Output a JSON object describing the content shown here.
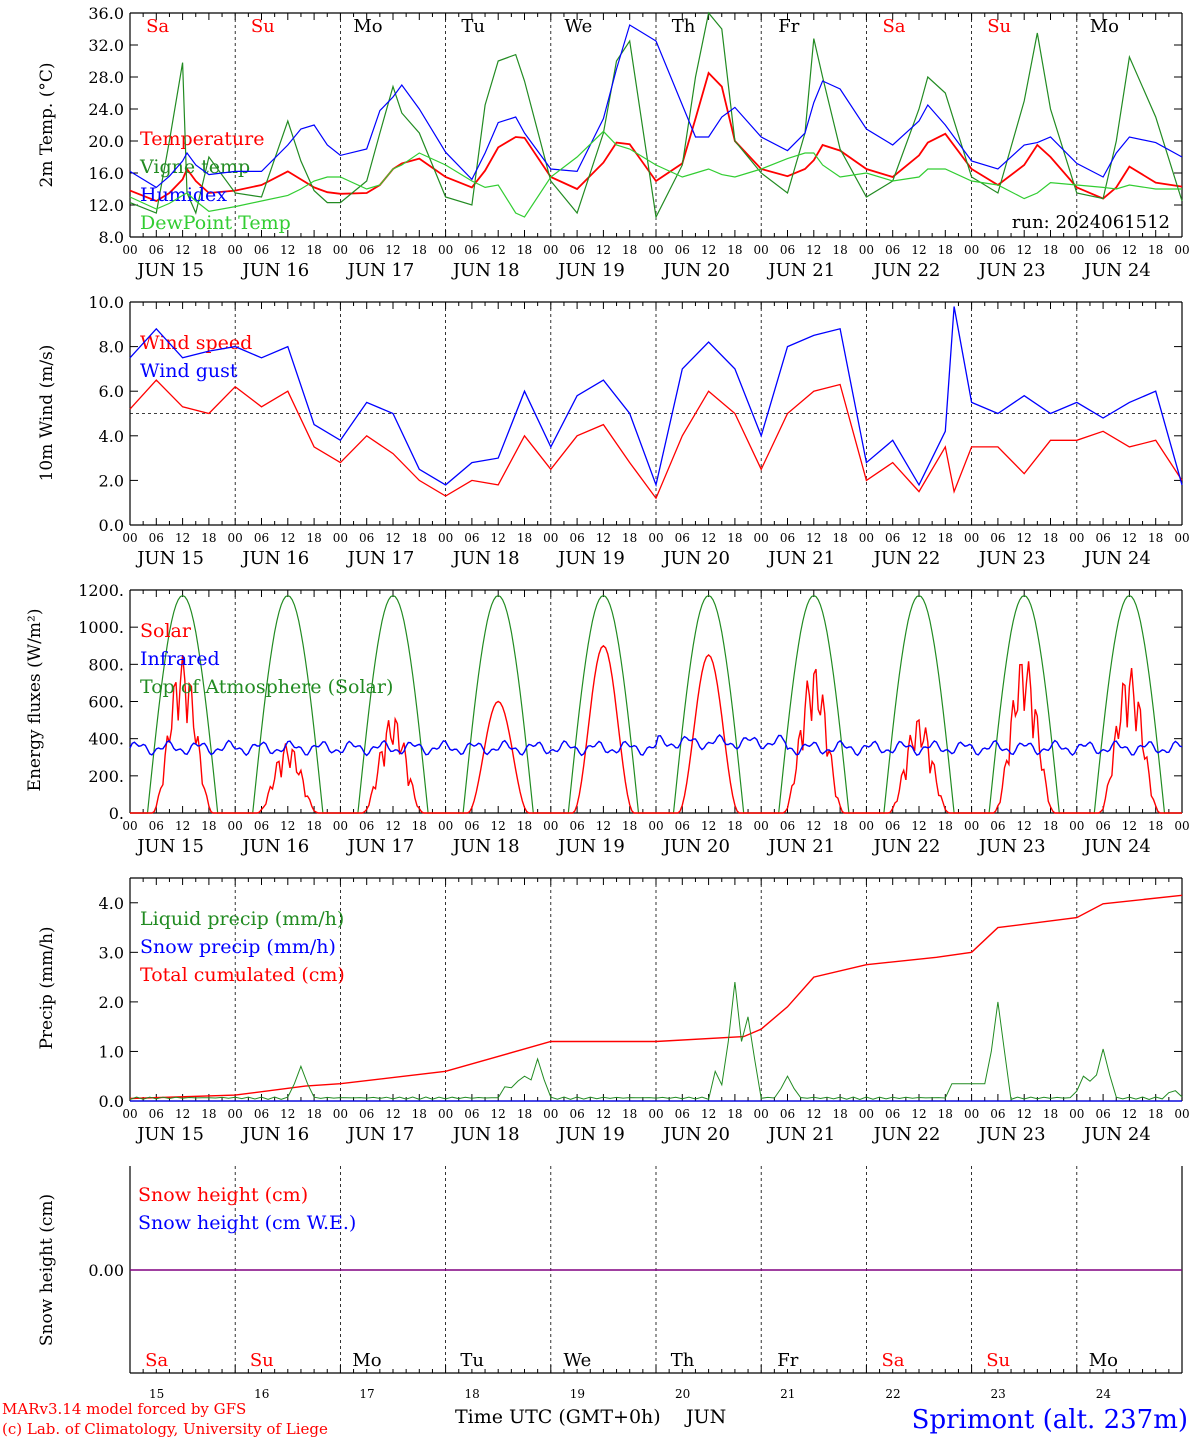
{
  "footer": {
    "model": "MARv3.14 model forced by GFS",
    "lab": "(c) Lab. of Climatology, University of Liege",
    "xlabel": "Time UTC (GMT+0h)",
    "month": "JUN",
    "location": "Sprimont (alt. 237m)"
  },
  "run_label": "run: 2024061512",
  "days": {
    "weekday_names": [
      "Sa",
      "Su",
      "Mo",
      "Tu",
      "We",
      "Th",
      "Fr",
      "Sa",
      "Su",
      "Mo"
    ],
    "weekend": [
      true,
      true,
      false,
      false,
      false,
      false,
      false,
      true,
      true,
      false
    ],
    "date_labels": [
      "JUN 15",
      "JUN 16",
      "JUN 17",
      "JUN 18",
      "JUN 19",
      "JUN 20",
      "JUN 21",
      "JUN 22",
      "JUN 23",
      "JUN 24"
    ],
    "day_numbers": [
      "15",
      "16",
      "17",
      "18",
      "19",
      "20",
      "21",
      "22",
      "23",
      "24"
    ],
    "hour_ticks": [
      "00",
      "06",
      "12",
      "18"
    ]
  },
  "colors": {
    "red": "#ff0000",
    "green": "#228b22",
    "blue": "#0000ff",
    "lightgreen": "#32cd32",
    "purple": "#800080"
  },
  "chart_data": [
    {
      "type": "line",
      "ylabel": "2m Temp. (°C)",
      "ylim": [
        8,
        36
      ],
      "yticks": [
        "8.0",
        "12.0",
        "16.0",
        "20.0",
        "24.0",
        "28.0",
        "32.0",
        "36.0"
      ],
      "x_hours": [
        0,
        6,
        9,
        12,
        13,
        15,
        18,
        24,
        30,
        36,
        39,
        42,
        45,
        48,
        54,
        57,
        60,
        62,
        66,
        72,
        78,
        81,
        84,
        88,
        90,
        96,
        102,
        108,
        111,
        114,
        120,
        126,
        129,
        132,
        135,
        138,
        144,
        150,
        154,
        156,
        158,
        162,
        168,
        174,
        180,
        182,
        186,
        192,
        198,
        204,
        207,
        210,
        216,
        222,
        225,
        228,
        234,
        240
      ],
      "series": [
        {
          "name": "Temperature",
          "color": "red",
          "values": [
            13.8,
            12.5,
            13.5,
            15.2,
            16.5,
            15.0,
            13.5,
            13.8,
            14.5,
            16.2,
            15.2,
            14.2,
            13.6,
            13.4,
            13.5,
            14.5,
            16.5,
            17.2,
            17.8,
            15.5,
            14.2,
            16.3,
            19.2,
            20.5,
            20.4,
            15.5,
            14.0,
            17.3,
            19.8,
            19.6,
            15.0,
            17.2,
            22.8,
            28.5,
            26.8,
            20.0,
            16.5,
            15.6,
            16.5,
            17.6,
            19.5,
            18.8,
            16.5,
            15.5,
            18.2,
            19.8,
            20.9,
            16.5,
            14.5,
            17.0,
            19.5,
            18.0,
            14.2,
            12.8,
            14.2,
            16.8,
            14.8,
            14.3
          ]
        },
        {
          "name": "Vigne temp",
          "color": "green",
          "values": [
            12.3,
            11.0,
            20.0,
            29.8,
            13.5,
            11.0,
            18.0,
            13.5,
            13.0,
            22.5,
            17.5,
            13.8,
            12.3,
            12.3,
            15.0,
            21.0,
            26.8,
            23.5,
            21.0,
            13.0,
            12.0,
            24.5,
            30.0,
            30.8,
            27.5,
            15.0,
            11.0,
            21.0,
            30.0,
            32.5,
            10.5,
            17.0,
            28.0,
            36.5,
            34.0,
            20.0,
            16.0,
            13.5,
            21.0,
            32.8,
            28.0,
            19.0,
            13.0,
            15.0,
            24.0,
            28.0,
            26.0,
            15.5,
            13.5,
            25.0,
            33.5,
            24.0,
            13.5,
            12.8,
            20.0,
            30.5,
            23.0,
            12.5
          ]
        },
        {
          "name": "Humidex",
          "color": "blue",
          "values": [
            16.2,
            14.2,
            15.6,
            17.5,
            18.5,
            17.0,
            15.8,
            16.2,
            16.2,
            19.5,
            21.5,
            22.0,
            19.5,
            18.2,
            19.0,
            23.8,
            25.5,
            27.0,
            24.0,
            18.6,
            15.2,
            18.5,
            22.3,
            23.0,
            21.0,
            16.5,
            16.2,
            22.8,
            29.0,
            34.5,
            32.5,
            24.5,
            20.5,
            20.5,
            23.0,
            24.2,
            20.5,
            18.8,
            21.0,
            24.8,
            27.5,
            26.5,
            21.5,
            19.5,
            22.5,
            24.5,
            22.0,
            17.5,
            16.5,
            19.5,
            19.8,
            20.5,
            17.2,
            15.5,
            18.5,
            20.5,
            19.8,
            18.0
          ]
        },
        {
          "name": "DewPoint Temp",
          "color": "lightgreen",
          "values": [
            13.0,
            11.5,
            12.2,
            13.2,
            13.5,
            12.5,
            11.2,
            11.8,
            12.5,
            13.2,
            14.0,
            15.0,
            15.5,
            15.5,
            14.0,
            14.5,
            16.5,
            17.0,
            18.5,
            17.0,
            15.0,
            14.2,
            14.5,
            11.0,
            10.5,
            15.5,
            18.0,
            21.2,
            19.5,
            19.0,
            17.0,
            15.5,
            16.0,
            16.5,
            15.8,
            15.5,
            16.5,
            17.8,
            18.5,
            18.5,
            17.0,
            15.5,
            16.0,
            15.0,
            15.5,
            16.5,
            16.5,
            15.0,
            14.5,
            12.8,
            13.5,
            14.8,
            14.5,
            14.2,
            14.0,
            14.5,
            14.0,
            14.0
          ]
        }
      ]
    },
    {
      "type": "line",
      "ylabel": "10m Wind (m/s)",
      "ylim": [
        0,
        10
      ],
      "yticks": [
        "0.0",
        "2.0",
        "4.0",
        "6.0",
        "8.0",
        "10.0"
      ],
      "reference_line": 5,
      "x_hours": [
        0,
        6,
        12,
        18,
        24,
        30,
        36,
        42,
        48,
        54,
        60,
        66,
        72,
        78,
        84,
        90,
        96,
        102,
        108,
        114,
        120,
        126,
        132,
        138,
        144,
        150,
        156,
        162,
        168,
        174,
        180,
        186,
        188,
        192,
        198,
        204,
        210,
        216,
        222,
        228,
        234,
        240
      ],
      "series": [
        {
          "name": "Wind speed",
          "color": "red",
          "values": [
            5.2,
            6.5,
            5.3,
            5.0,
            6.2,
            5.3,
            6.0,
            3.5,
            2.8,
            4.0,
            3.2,
            2.0,
            1.3,
            2.0,
            1.8,
            4.0,
            2.5,
            4.0,
            4.5,
            2.8,
            1.2,
            4.0,
            6.0,
            5.0,
            2.5,
            5.0,
            6.0,
            6.3,
            2.0,
            2.8,
            1.5,
            3.5,
            1.5,
            3.5,
            3.5,
            2.3,
            3.8,
            3.8,
            4.2,
            3.5,
            3.8,
            2.0
          ]
        },
        {
          "name": "Wind gust",
          "color": "blue",
          "values": [
            7.5,
            8.8,
            7.5,
            7.8,
            8.0,
            7.5,
            8.0,
            4.5,
            3.8,
            5.5,
            5.0,
            2.5,
            1.8,
            2.8,
            3.0,
            6.0,
            3.5,
            5.8,
            6.5,
            5.0,
            1.8,
            7.0,
            8.2,
            7.0,
            4.0,
            8.0,
            8.5,
            8.8,
            2.8,
            3.8,
            1.8,
            4.2,
            9.8,
            5.5,
            5.0,
            5.8,
            5.0,
            5.5,
            4.8,
            5.5,
            6.0,
            1.8
          ]
        }
      ]
    },
    {
      "type": "line",
      "ylabel": "Energy fluxes (W/m²)",
      "ylim": [
        0,
        1200
      ],
      "yticks": [
        "0.",
        "200.",
        "400.",
        "600.",
        "800.",
        "1000.",
        "1200."
      ],
      "series": [
        {
          "name": "Solar",
          "color": "red",
          "daily_peaks": [
            850,
            380,
            530,
            600,
            900,
            850,
            800,
            520,
            860,
            790
          ]
        },
        {
          "name": "Infrared",
          "color": "blue",
          "values_hint": "approx 300-400 W/m²",
          "base": 350
        },
        {
          "name": "Top of Atmosphere (Solar)",
          "color": "green",
          "daily_peak": 1170,
          "sunrise_h": 4,
          "sunset_h": 20
        }
      ]
    },
    {
      "type": "line",
      "ylabel": "Precip (mm/h)",
      "ylim": [
        0,
        4.5
      ],
      "yticks": [
        "0.0",
        "1.0",
        "2.0",
        "3.0",
        "4.0"
      ],
      "series": [
        {
          "name": "Liquid precip (mm/h)",
          "color": "green"
        },
        {
          "name": "Snow precip (mm/h)",
          "color": "blue"
        },
        {
          "name": "Total cumulated (cm)",
          "color": "red",
          "x_hours": [
            0,
            24,
            40,
            48,
            72,
            84,
            96,
            120,
            140,
            144,
            150,
            156,
            168,
            184,
            192,
            198,
            216,
            222,
            240
          ],
          "values": [
            0.05,
            0.12,
            0.3,
            0.35,
            0.6,
            0.9,
            1.2,
            1.2,
            1.3,
            1.45,
            1.9,
            2.5,
            2.75,
            2.9,
            3.0,
            3.5,
            3.7,
            3.98,
            4.15
          ]
        }
      ]
    },
    {
      "type": "line",
      "ylabel": "Snow height (cm)",
      "yticks": [
        "0.00"
      ],
      "series": [
        {
          "name": "Snow height (cm)",
          "color": "red",
          "values": [
            0,
            0
          ]
        },
        {
          "name": "Snow height (cm W.E.)",
          "color": "blue",
          "values": [
            0,
            0
          ]
        }
      ]
    }
  ]
}
